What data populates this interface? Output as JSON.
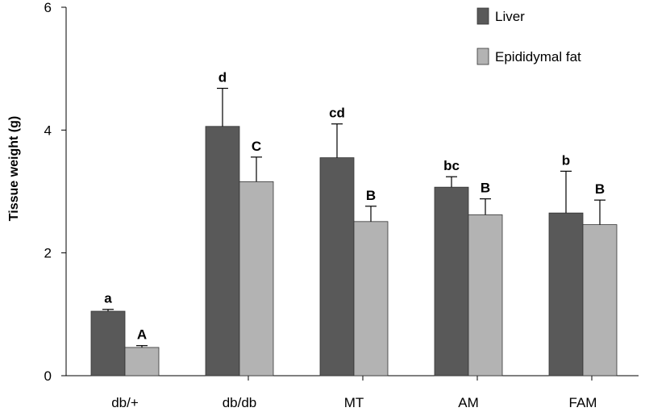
{
  "chart_data": {
    "type": "bar",
    "ylabel": "Tissue weight (g)",
    "xlabel": "",
    "ylim": [
      0,
      6
    ],
    "yticks": [
      0,
      2,
      4,
      6
    ],
    "grid": false,
    "legend_position": "top-right",
    "categories": [
      "db/+",
      "db/db",
      "MT",
      "AM",
      "FAM"
    ],
    "series": [
      {
        "name": "Liver",
        "color": "#595959",
        "values": [
          1.05,
          4.06,
          3.55,
          3.07,
          2.65
        ],
        "errors": [
          0.03,
          0.62,
          0.55,
          0.17,
          0.68
        ],
        "labels": [
          "a",
          "d",
          "cd",
          "bc",
          "b"
        ]
      },
      {
        "name": "Epididymal fat",
        "color": "#b3b3b3",
        "values": [
          0.46,
          3.16,
          2.51,
          2.62,
          2.46
        ],
        "errors": [
          0.03,
          0.4,
          0.25,
          0.26,
          0.4
        ],
        "labels": [
          "A",
          "C",
          "B",
          "B",
          "B"
        ]
      }
    ]
  }
}
